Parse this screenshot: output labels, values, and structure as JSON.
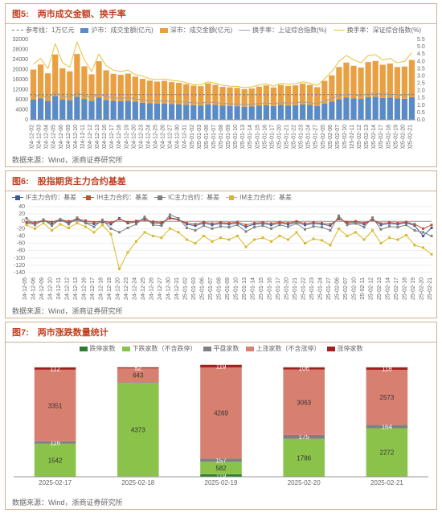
{
  "chart5": {
    "title": "图5:　两市成交金额、换手率",
    "type": "bar+line",
    "source": "数据来源：Wind，浙商证券研究所",
    "legend": [
      {
        "label": "参考线：1万亿元",
        "type": "line-dash",
        "color": "#808080"
      },
      {
        "label": "沪市：成交金额(亿元)",
        "type": "box",
        "color": "#5b8bc5"
      },
      {
        "label": "深市：成交金额(亿元)",
        "type": "box",
        "color": "#e8a043"
      },
      {
        "label": "换手率：上证综合指数(%)",
        "type": "line",
        "color": "#a0a0a0"
      },
      {
        "label": "换手率：深证综合指数(%)",
        "type": "line",
        "color": "#e8c03a"
      }
    ],
    "left_ylim": [
      0,
      32000
    ],
    "left_ytick_step": 4000,
    "right_ylim": [
      0,
      5.5
    ],
    "right_ytick_step": 0.5,
    "ref_line": 10000,
    "background_color": "#ffffff",
    "grid_color": "none",
    "label_fontsize": 7,
    "bar_colors": {
      "sh": "#5b8bc5",
      "sz": "#e8a043"
    },
    "line_colors": {
      "sh_turn": "#a0a0a0",
      "sz_turn": "#e8c03a"
    },
    "dates": [
      "2024-12-02",
      "2024-12-03",
      "2024-12-04",
      "2024-12-05",
      "2024-12-06",
      "2024-12-09",
      "2024-12-10",
      "2024-12-11",
      "2024-12-12",
      "2024-12-13",
      "2024-12-16",
      "2024-12-17",
      "2024-12-18",
      "2024-12-19",
      "2024-12-20",
      "2024-12-23",
      "2024-12-24",
      "2024-12-25",
      "2024-12-26",
      "2024-12-27",
      "2024-12-30",
      "2024-12-31",
      "2025-01-02",
      "2025-01-03",
      "2025-01-06",
      "2025-01-07",
      "2025-01-08",
      "2025-01-09",
      "2025-01-10",
      "2025-01-13",
      "2025-01-14",
      "2025-01-15",
      "2025-01-16",
      "2025-01-17",
      "2025-01-20",
      "2025-01-21",
      "2025-01-22",
      "2025-01-23",
      "2025-01-24",
      "2025-01-27",
      "2025-02-05",
      "2025-02-06",
      "2025-02-07",
      "2025-02-10",
      "2025-02-11",
      "2025-02-12",
      "2025-02-13",
      "2025-02-14",
      "2025-02-17",
      "2025-02-18",
      "2025-02-19",
      "2025-02-20",
      "2025-02-21"
    ],
    "sh_amount": [
      8000,
      8500,
      7500,
      9500,
      8000,
      7800,
      9200,
      8300,
      7600,
      8800,
      7900,
      7500,
      7400,
      7600,
      7200,
      6800,
      6600,
      6400,
      6500,
      6300,
      6200,
      6000,
      5800,
      5700,
      6100,
      5900,
      5600,
      5500,
      5400,
      5200,
      5300,
      5600,
      5800,
      5500,
      5900,
      5700,
      5800,
      6100,
      5900,
      5500,
      6500,
      7200,
      8200,
      8800,
      8500,
      8300,
      9000,
      9200,
      8700,
      8900,
      8500,
      8400,
      9000
    ],
    "sz_amount": [
      12000,
      13500,
      11000,
      16500,
      12500,
      11500,
      17000,
      13000,
      10500,
      14500,
      11800,
      10800,
      10500,
      10800,
      10000,
      9500,
      9000,
      8800,
      9000,
      8700,
      8500,
      8200,
      7800,
      7700,
      8400,
      8000,
      7500,
      7400,
      7300,
      7000,
      7200,
      7600,
      7900,
      7400,
      8000,
      7800,
      7900,
      8300,
      8000,
      7500,
      9000,
      10500,
      12800,
      14000,
      13000,
      12500,
      14000,
      14200,
      13200,
      13500,
      12500,
      12800,
      14800
    ],
    "sh_turnover": [
      1.6,
      1.7,
      1.5,
      1.9,
      1.6,
      1.55,
      1.85,
      1.65,
      1.5,
      1.75,
      1.58,
      1.5,
      1.48,
      1.52,
      1.44,
      1.36,
      1.32,
      1.28,
      1.3,
      1.26,
      1.24,
      1.2,
      1.16,
      1.14,
      1.22,
      1.18,
      1.12,
      1.1,
      1.08,
      1.04,
      1.06,
      1.12,
      1.16,
      1.1,
      1.18,
      1.14,
      1.16,
      1.22,
      1.18,
      1.1,
      1.3,
      1.44,
      1.64,
      1.76,
      1.7,
      1.66,
      1.8,
      1.84,
      1.74,
      1.78,
      1.7,
      1.68,
      1.8
    ],
    "sz_turnover": [
      3.8,
      4.2,
      3.5,
      5.2,
      3.9,
      3.6,
      5.3,
      4.1,
      3.3,
      4.5,
      3.7,
      3.4,
      3.3,
      3.4,
      3.1,
      3.0,
      2.8,
      2.75,
      2.8,
      2.7,
      2.65,
      2.55,
      2.4,
      2.4,
      2.6,
      2.5,
      2.35,
      2.3,
      2.28,
      2.2,
      2.25,
      2.38,
      2.47,
      2.3,
      2.5,
      2.44,
      2.47,
      2.6,
      2.5,
      2.35,
      2.8,
      3.3,
      4.0,
      4.4,
      4.1,
      3.9,
      4.4,
      4.45,
      4.1,
      4.2,
      3.9,
      4.0,
      4.6
    ]
  },
  "chart6": {
    "title": "图6:　股指期货主力合约基差",
    "type": "line",
    "source": "数据来源：Wind，浙商证券研究所",
    "legend": [
      {
        "label": "IF主力合约：基差",
        "type": "line-marker",
        "color": "#3a5a9a",
        "marker": "diamond"
      },
      {
        "label": "IH主力合约：基差",
        "type": "line-marker",
        "color": "#c05030",
        "marker": "square"
      },
      {
        "label": "IC主力合约：基差",
        "type": "line-marker",
        "color": "#808080",
        "marker": "triangle"
      },
      {
        "label": "IM主力合约：基差",
        "type": "line-marker",
        "color": "#d8b828",
        "marker": "circle"
      }
    ],
    "ylim": [
      -140,
      40
    ],
    "ytick_step": 20,
    "background_color": "#ffffff",
    "label_fontsize": 7,
    "dates": [
      "2024-12-05",
      "2024-12-06",
      "2024-12-09",
      "2024-12-10",
      "2024-12-11",
      "2024-12-12",
      "2024-12-13",
      "2024-12-16",
      "2024-12-17",
      "2024-12-18",
      "2024-12-19",
      "2024-12-20",
      "2024-12-23",
      "2024-12-24",
      "2024-12-25",
      "2024-12-26",
      "2024-12-27",
      "2024-12-30",
      "2024-12-31",
      "2025-01-02",
      "2025-01-03",
      "2025-01-06",
      "2025-01-07",
      "2025-01-08",
      "2025-01-09",
      "2025-01-10",
      "2025-01-13",
      "2025-01-14",
      "2025-01-15",
      "2025-01-16",
      "2025-01-17",
      "2025-01-20",
      "2025-01-21",
      "2025-01-22",
      "2025-01-23",
      "2025-01-24",
      "2025-01-27",
      "2025-02-06",
      "2025-02-07",
      "2025-02-10",
      "2025-02-11",
      "2025-02-12",
      "2025-02-13",
      "2025-02-14",
      "2025-02-17",
      "2025-02-18",
      "2025-02-19",
      "2025-02-20",
      "2025-02-21"
    ],
    "IF": [
      -5,
      -8,
      2,
      -6,
      3,
      -4,
      5,
      -3,
      -7,
      -2,
      -8,
      8,
      -5,
      -2,
      6,
      -4,
      -6,
      10,
      5,
      -8,
      -12,
      -5,
      -10,
      -6,
      -8,
      -5,
      -15,
      -8,
      -6,
      -10,
      -5,
      -8,
      -3,
      -10,
      -6,
      -8,
      -12,
      8,
      -5,
      -3,
      -8,
      5,
      -10,
      -6,
      -8,
      -4,
      -12,
      -40,
      -18
    ],
    "IH": [
      -2,
      -4,
      3,
      -2,
      5,
      0,
      6,
      2,
      -3,
      1,
      -4,
      6,
      -2,
      1,
      4,
      -1,
      -3,
      8,
      4,
      -5,
      -8,
      -2,
      -6,
      -3,
      -5,
      -2,
      -10,
      -5,
      -3,
      -6,
      -2,
      -5,
      0,
      -6,
      -3,
      -5,
      -8,
      6,
      -2,
      0,
      -5,
      4,
      -6,
      -3,
      -5,
      -2,
      -8,
      -20,
      -10
    ],
    "IC": [
      8,
      -10,
      5,
      -12,
      6,
      -8,
      10,
      -5,
      -15,
      4,
      -20,
      -30,
      -18,
      -8,
      12,
      -10,
      -12,
      18,
      8,
      -18,
      -25,
      -12,
      -20,
      -14,
      -16,
      -10,
      -28,
      -16,
      -12,
      -20,
      -10,
      -15,
      -6,
      -22,
      -14,
      -16,
      -25,
      15,
      -10,
      -6,
      -16,
      10,
      -22,
      -14,
      -16,
      -10,
      -25,
      -30,
      -40
    ],
    "IM": [
      -10,
      -20,
      -5,
      -25,
      -8,
      -18,
      -5,
      -15,
      -30,
      -10,
      -35,
      -130,
      -85,
      -55,
      -30,
      -40,
      -45,
      -20,
      -30,
      -50,
      -60,
      -40,
      -55,
      -45,
      -50,
      -40,
      -70,
      -50,
      -45,
      -55,
      -40,
      -50,
      -30,
      -60,
      -48,
      -52,
      -65,
      -20,
      -40,
      -30,
      -50,
      -25,
      -60,
      -45,
      -50,
      -38,
      -65,
      -72,
      -90
    ]
  },
  "chart7": {
    "title": "图7:　两市涨跌数量统计",
    "type": "stacked-bar",
    "source": "数据来源：Wind，浙商证券研究所",
    "legend": [
      {
        "label": "跌停家数",
        "type": "box",
        "color": "#2e7a2e"
      },
      {
        "label": "下跌家数（不含跌停）",
        "type": "box",
        "color": "#8bc34a"
      },
      {
        "label": "平盘家数",
        "type": "box",
        "color": "#808080"
      },
      {
        "label": "上涨家数（不含涨停）",
        "type": "box",
        "color": "#d88070"
      },
      {
        "label": "涨停家数",
        "type": "box",
        "color": "#a02020"
      }
    ],
    "ylim": [
      0,
      5500
    ],
    "background_color": "#ffffff",
    "label_fontsize": 8,
    "bar_width": 0.5,
    "dates": [
      "2025-02-17",
      "2025-02-18",
      "2025-02-19",
      "2025-02-20",
      "2025-02-21"
    ],
    "series": {
      "limit_down": [
        8,
        25,
        119,
        1,
        4
      ],
      "down": [
        1542,
        4373,
        582,
        1786,
        2272
      ],
      "flat": [
        116,
        38,
        157,
        175,
        164
      ],
      "up": [
        3351,
        643,
        4269,
        3063,
        2573
      ],
      "limit_up": [
        112,
        52,
        119,
        106,
        118
      ]
    },
    "colors": {
      "limit_down": "#2e7a2e",
      "down": "#8bc34a",
      "flat": "#808080",
      "up": "#d88070",
      "limit_up": "#a02020"
    }
  }
}
